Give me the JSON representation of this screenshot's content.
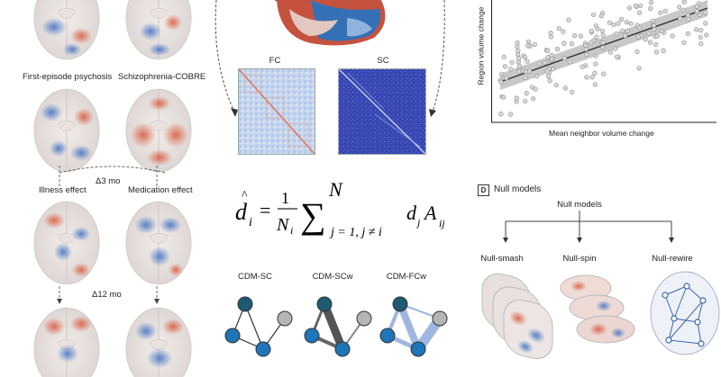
{
  "left_panel": {
    "labels": {
      "first_episode": "First-episode psychosis",
      "cobre": "Schizophrenia-COBRE",
      "delta3": "Δ3 mo",
      "illness": "Illness effect",
      "medication": "Medication effect",
      "delta12": "Δ12 mo"
    }
  },
  "connectivity": {
    "fc_label": "FC",
    "sc_label": "SC"
  },
  "formula": {
    "lhs_var": "d",
    "lhs_sub": "i",
    "frac_num": "1",
    "frac_den": "N",
    "frac_den_sub": "i",
    "sum_upper": "N",
    "sum_lower": "j = 1, j ≠ i",
    "rhs_var1": "d",
    "rhs_sub1": "j",
    "rhs_var2": "A",
    "rhs_sub2": "ij"
  },
  "cdm": {
    "sc": "CDM-SC",
    "scw": "CDM-SCw",
    "fcw": "CDM-FCw"
  },
  "scatter": {
    "ylabel": "Region volume change",
    "xlabel": "Mean neighbor volume change",
    "chart_data": {
      "type": "scatter",
      "xlabel": "Mean neighbor volume change",
      "ylabel": "Region volume change",
      "grid": false,
      "points_trend": "positive linear with confidence band"
    }
  },
  "null_models": {
    "tag": "D",
    "title": "Null models",
    "subtitle": "Null models",
    "smash": "Null-smash",
    "spin": "Null-spin",
    "rewire": "Null-rewire"
  }
}
